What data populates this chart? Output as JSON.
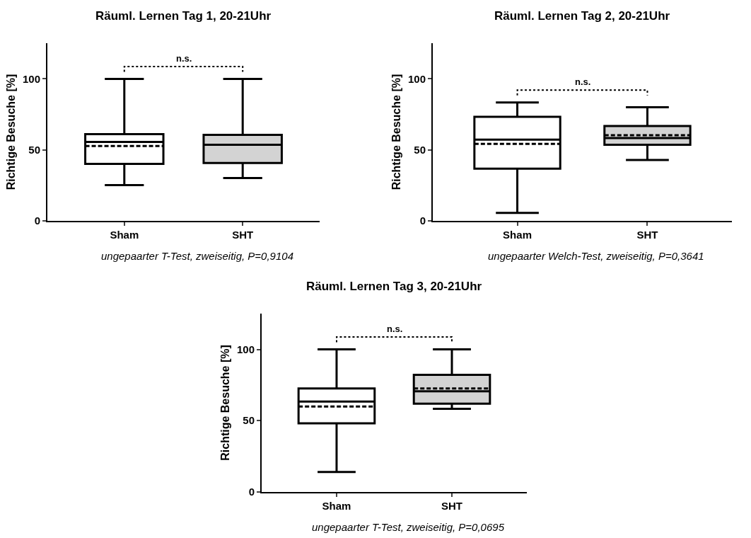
{
  "chart_data": [
    {
      "type": "box",
      "title": "Räuml. Lernen Tag 1, 20-21Uhr",
      "ylabel": "Richtige Besuche [%]",
      "categories": [
        "Sham",
        "SHT"
      ],
      "colors": [
        "#ffffff",
        "#d3d3d3"
      ],
      "boxes": [
        {
          "low": 25,
          "q1": 40,
          "median": 55.5,
          "q3": 61,
          "high": 100,
          "mean": 52.7
        },
        {
          "low": 30,
          "q1": 40.7,
          "median": 53.5,
          "q3": 60.5,
          "high": 100,
          "mean": 53.5
        }
      ],
      "ylim": [
        0,
        125
      ],
      "yticks": [
        0,
        50,
        100
      ],
      "annotations": [
        "n.s.",
        "ungepaarter T-Test, zweiseitig, P=0,9104"
      ]
    },
    {
      "type": "box",
      "title": "Räuml. Lernen Tag 2, 20-21Uhr",
      "ylabel": "Richtige Besuche [%]",
      "categories": [
        "Sham",
        "SHT"
      ],
      "colors": [
        "#ffffff",
        "#d3d3d3"
      ],
      "boxes": [
        {
          "low": 5.5,
          "q1": 36.7,
          "median": 57.2,
          "q3": 73.3,
          "high": 83.3,
          "mean": 54.2
        },
        {
          "low": 42.8,
          "q1": 53.5,
          "median": 58.3,
          "q3": 66.8,
          "high": 80,
          "mean": 60.3
        }
      ],
      "ylim": [
        0,
        125
      ],
      "yticks": [
        0,
        50,
        100
      ],
      "annotations": [
        "n.s.",
        "ungepaarter Welch-Test, zweiseitig, P=0,3641"
      ]
    },
    {
      "type": "box",
      "title": "Räuml. Lernen Tag 3, 20-21Uhr",
      "ylabel": "Richtige Besuche [%]",
      "categories": [
        "Sham",
        "SHT"
      ],
      "colors": [
        "#ffffff",
        "#d3d3d3"
      ],
      "boxes": [
        {
          "low": 13.9,
          "q1": 48.1,
          "median": 63.4,
          "q3": 72.6,
          "high": 100,
          "mean": 59.9
        },
        {
          "low": 58.3,
          "q1": 61.9,
          "median": 70.6,
          "q3": 82.1,
          "high": 100,
          "mean": 72.5
        }
      ],
      "ylim": [
        0,
        125
      ],
      "yticks": [
        0,
        50,
        100
      ],
      "annotations": [
        "n.s.",
        "ungepaarter T-Test, zweiseitig, P=0,0695"
      ]
    }
  ]
}
